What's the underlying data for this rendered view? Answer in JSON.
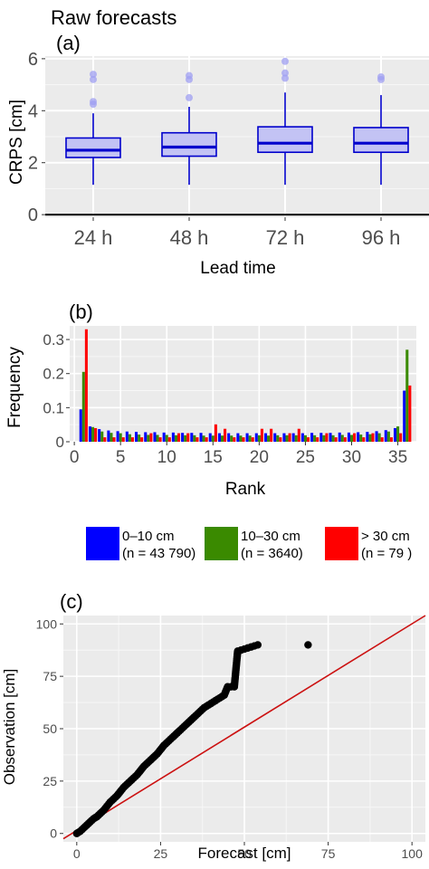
{
  "figure_title": "Raw forecasts",
  "chart_data": [
    {
      "panel": "(a)",
      "type": "box",
      "categories": [
        "24 h",
        "48 h",
        "72 h",
        "96 h"
      ],
      "boxes": [
        {
          "category": "24 h",
          "whisker_low": 1.15,
          "q1": 2.2,
          "median": 2.48,
          "q3": 2.95,
          "whisker_high": 3.9,
          "outliers": [
            4.25,
            4.35,
            5.2,
            5.4
          ]
        },
        {
          "category": "48 h",
          "whisker_low": 1.15,
          "q1": 2.25,
          "median": 2.6,
          "q3": 3.15,
          "whisker_high": 4.15,
          "outliers": [
            4.5,
            5.2,
            5.35
          ]
        },
        {
          "category": "72 h",
          "whisker_low": 1.15,
          "q1": 2.4,
          "median": 2.75,
          "q3": 3.38,
          "whisker_high": 4.7,
          "outliers": [
            5.25,
            5.45,
            5.9
          ]
        },
        {
          "category": "96 h",
          "whisker_low": 1.15,
          "q1": 2.4,
          "median": 2.75,
          "q3": 3.35,
          "whisker_high": 4.6,
          "outliers": [
            5.2,
            5.3
          ]
        }
      ],
      "ylabel": "CRPS [cm]",
      "xlabel": "Lead time",
      "yticks": [
        0,
        2,
        4,
        6
      ],
      "ylim": [
        -0.1,
        6.1
      ]
    },
    {
      "panel": "(b)",
      "type": "bar",
      "xlabel": "Rank",
      "ylabel": "Frequency",
      "xticks": [
        0,
        5,
        10,
        15,
        20,
        25,
        30,
        35
      ],
      "yticks": [
        0.0,
        0.1,
        0.2,
        0.3
      ],
      "ylim": [
        0,
        0.34
      ],
      "series": [
        {
          "name": "0–10 cm\n(n = 43 790)",
          "color": "#0000ff",
          "values": [
            0.095,
            0.045,
            0.037,
            0.033,
            0.031,
            0.03,
            0.029,
            0.028,
            0.028,
            0.027,
            0.027,
            0.026,
            0.026,
            0.026,
            0.025,
            0.025,
            0.025,
            0.025,
            0.025,
            0.025,
            0.025,
            0.025,
            0.025,
            0.025,
            0.025,
            0.026,
            0.026,
            0.026,
            0.027,
            0.027,
            0.028,
            0.029,
            0.031,
            0.034,
            0.04,
            0.15
          ]
        },
        {
          "name": "10–30 cm\n(n = 3640)",
          "color": "#3a8a00",
          "values": [
            0.205,
            0.043,
            0.03,
            0.026,
            0.025,
            0.022,
            0.021,
            0.02,
            0.02,
            0.02,
            0.019,
            0.019,
            0.019,
            0.018,
            0.018,
            0.018,
            0.018,
            0.018,
            0.018,
            0.019,
            0.018,
            0.019,
            0.019,
            0.019,
            0.019,
            0.019,
            0.019,
            0.019,
            0.02,
            0.02,
            0.021,
            0.022,
            0.025,
            0.03,
            0.045,
            0.27
          ]
        },
        {
          "name": "> 30 cm\n(n = 79 )",
          "color": "#ff0000",
          "values": [
            0.33,
            0.04,
            0.013,
            0.013,
            0.013,
            0.013,
            0.013,
            0.025,
            0.013,
            0.013,
            0.025,
            0.025,
            0.013,
            0.013,
            0.051,
            0.038,
            0.013,
            0.013,
            0.013,
            0.038,
            0.038,
            0.013,
            0.025,
            0.038,
            0.013,
            0.013,
            0.025,
            0.013,
            0.013,
            0.025,
            0.013,
            0.025,
            0.013,
            0.013,
            0.025,
            0.165
          ]
        }
      ],
      "legend_position": "bottom"
    },
    {
      "panel": "(c)",
      "type": "scatter",
      "xlabel": "Forecast [cm]",
      "ylabel": "Observation [cm]",
      "xticks": [
        0,
        25,
        50,
        75,
        100
      ],
      "yticks": [
        0,
        25,
        50,
        75,
        100
      ],
      "xlim": [
        -4,
        104
      ],
      "ylim": [
        -4,
        104
      ],
      "curve": [
        [
          0,
          0
        ],
        [
          1,
          1
        ],
        [
          2,
          2.5
        ],
        [
          3,
          4
        ],
        [
          4,
          5.5
        ],
        [
          5,
          7
        ],
        [
          6,
          8
        ],
        [
          7,
          9.5
        ],
        [
          8,
          11
        ],
        [
          9,
          13
        ],
        [
          10,
          15
        ],
        [
          12,
          18
        ],
        [
          14,
          22
        ],
        [
          16,
          25
        ],
        [
          18,
          28
        ],
        [
          20,
          32
        ],
        [
          22,
          35
        ],
        [
          24,
          38
        ],
        [
          26,
          42
        ],
        [
          28,
          45
        ],
        [
          30,
          48
        ],
        [
          32,
          51
        ],
        [
          34,
          54
        ],
        [
          36,
          57
        ],
        [
          38,
          60
        ],
        [
          40,
          62
        ],
        [
          42,
          64
        ],
        [
          44,
          66
        ],
        [
          45,
          70
        ],
        [
          47,
          70
        ],
        [
          48,
          87
        ],
        [
          50,
          88
        ],
        [
          52,
          89
        ],
        [
          54,
          90
        ]
      ],
      "extra_points": [
        [
          69,
          90
        ]
      ],
      "reference_line": {
        "x": [
          -4,
          104
        ],
        "y": [
          -2.5,
          104
        ],
        "color": "#cc1111"
      }
    }
  ]
}
